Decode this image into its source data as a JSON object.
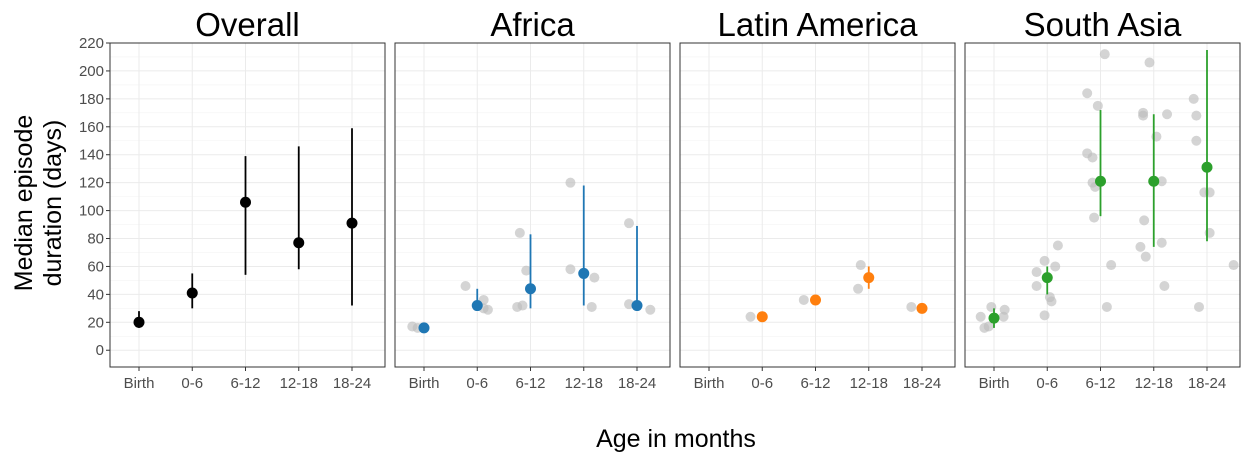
{
  "figure": {
    "ylabel_lines": [
      "Median episode",
      "duration (days)"
    ],
    "xlabel": "Age in months"
  },
  "colors": {
    "Overall": "#000000",
    "Africa": "#1f77b4",
    "Latin America": "#ff7f0e",
    "South Asia": "#2ca02c",
    "individual_points": "#bdbdbd",
    "grid_major": "#ebebeb",
    "panel_border": "#333333"
  },
  "chart_data": [
    {
      "type": "scatter",
      "title": "Overall",
      "categories": [
        "Birth",
        "0-6",
        "6-12",
        "12-18",
        "18-24"
      ],
      "ylim": [
        -12,
        220
      ],
      "yticks": [
        0,
        20,
        40,
        60,
        80,
        100,
        120,
        140,
        160,
        180,
        200,
        220
      ],
      "grid": true,
      "summary": [
        {
          "x": "Birth",
          "median": 20,
          "lower": 16,
          "upper": 28
        },
        {
          "x": "0-6",
          "median": 41,
          "lower": 30,
          "upper": 55
        },
        {
          "x": "6-12",
          "median": 106,
          "lower": 54,
          "upper": 139
        },
        {
          "x": "12-18",
          "median": 77,
          "lower": 58,
          "upper": 146
        },
        {
          "x": "18-24",
          "median": 91,
          "lower": 32,
          "upper": 159
        }
      ],
      "points": []
    },
    {
      "type": "scatter",
      "title": "Africa",
      "categories": [
        "Birth",
        "0-6",
        "6-12",
        "12-18",
        "18-24"
      ],
      "ylim": [
        -12,
        220
      ],
      "grid": true,
      "summary": [
        {
          "x": "Birth",
          "median": 16,
          "lower": 16,
          "upper": 16
        },
        {
          "x": "0-6",
          "median": 32,
          "lower": 29,
          "upper": 44
        },
        {
          "x": "6-12",
          "median": 44,
          "lower": 30,
          "upper": 83
        },
        {
          "x": "12-18",
          "median": 55,
          "lower": 32,
          "upper": 118
        },
        {
          "x": "18-24",
          "median": 32,
          "lower": 30,
          "upper": 89
        }
      ],
      "points": [
        {
          "x": "Birth",
          "offset": -0.22,
          "y": 17
        },
        {
          "x": "Birth",
          "offset": -0.12,
          "y": 16
        },
        {
          "x": "0-6",
          "offset": -0.22,
          "y": 46
        },
        {
          "x": "0-6",
          "offset": 0.12,
          "y": 36
        },
        {
          "x": "0-6",
          "offset": 0.12,
          "y": 30
        },
        {
          "x": "0-6",
          "offset": 0.2,
          "y": 29
        },
        {
          "x": "6-12",
          "offset": -0.25,
          "y": 31
        },
        {
          "x": "6-12",
          "offset": -0.15,
          "y": 32
        },
        {
          "x": "6-12",
          "offset": -0.2,
          "y": 84
        },
        {
          "x": "6-12",
          "offset": -0.08,
          "y": 57
        },
        {
          "x": "12-18",
          "offset": -0.25,
          "y": 120
        },
        {
          "x": "12-18",
          "offset": -0.25,
          "y": 58
        },
        {
          "x": "12-18",
          "offset": 0.2,
          "y": 52
        },
        {
          "x": "12-18",
          "offset": 0.15,
          "y": 31
        },
        {
          "x": "18-24",
          "offset": -0.15,
          "y": 91
        },
        {
          "x": "18-24",
          "offset": -0.15,
          "y": 33
        },
        {
          "x": "18-24",
          "offset": 0.25,
          "y": 29
        }
      ]
    },
    {
      "type": "scatter",
      "title": "Latin America",
      "categories": [
        "Birth",
        "0-6",
        "6-12",
        "12-18",
        "18-24"
      ],
      "ylim": [
        -12,
        220
      ],
      "grid": true,
      "summary": [
        {
          "x": "0-6",
          "median": 24,
          "lower": 24,
          "upper": 24
        },
        {
          "x": "6-12",
          "median": 36,
          "lower": 36,
          "upper": 36
        },
        {
          "x": "12-18",
          "median": 52,
          "lower": 44,
          "upper": 60
        },
        {
          "x": "18-24",
          "median": 30,
          "lower": 30,
          "upper": 30
        }
      ],
      "points": [
        {
          "x": "0-6",
          "offset": -0.22,
          "y": 24
        },
        {
          "x": "6-12",
          "offset": -0.22,
          "y": 36
        },
        {
          "x": "12-18",
          "offset": -0.2,
          "y": 44
        },
        {
          "x": "12-18",
          "offset": -0.15,
          "y": 61
        },
        {
          "x": "18-24",
          "offset": -0.2,
          "y": 31
        }
      ]
    },
    {
      "type": "scatter",
      "title": "South Asia",
      "categories": [
        "Birth",
        "0-6",
        "6-12",
        "12-18",
        "18-24"
      ],
      "ylim": [
        -12,
        220
      ],
      "grid": true,
      "summary": [
        {
          "x": "Birth",
          "median": 23,
          "lower": 16,
          "upper": 30
        },
        {
          "x": "0-6",
          "median": 52,
          "lower": 40,
          "upper": 60
        },
        {
          "x": "6-12",
          "median": 121,
          "lower": 96,
          "upper": 172
        },
        {
          "x": "12-18",
          "median": 121,
          "lower": 74,
          "upper": 169
        },
        {
          "x": "18-24",
          "median": 131,
          "lower": 78,
          "upper": 215
        }
      ],
      "points": [
        {
          "x": "Birth",
          "offset": -0.25,
          "y": 24
        },
        {
          "x": "Birth",
          "offset": -0.18,
          "y": 16
        },
        {
          "x": "Birth",
          "offset": -0.1,
          "y": 17
        },
        {
          "x": "Birth",
          "offset": -0.05,
          "y": 31
        },
        {
          "x": "Birth",
          "offset": 0.2,
          "y": 29
        },
        {
          "x": "Birth",
          "offset": 0.18,
          "y": 24
        },
        {
          "x": "0-6",
          "offset": -0.2,
          "y": 46
        },
        {
          "x": "0-6",
          "offset": -0.2,
          "y": 56
        },
        {
          "x": "0-6",
          "offset": -0.05,
          "y": 64
        },
        {
          "x": "0-6",
          "offset": -0.05,
          "y": 25
        },
        {
          "x": "0-6",
          "offset": 0.05,
          "y": 38
        },
        {
          "x": "0-6",
          "offset": 0.08,
          "y": 35
        },
        {
          "x": "0-6",
          "offset": 0.15,
          "y": 60
        },
        {
          "x": "0-6",
          "offset": 0.2,
          "y": 75
        },
        {
          "x": "6-12",
          "offset": -0.25,
          "y": 184
        },
        {
          "x": "6-12",
          "offset": -0.25,
          "y": 141
        },
        {
          "x": "6-12",
          "offset": -0.15,
          "y": 138
        },
        {
          "x": "6-12",
          "offset": -0.15,
          "y": 120
        },
        {
          "x": "6-12",
          "offset": -0.1,
          "y": 117
        },
        {
          "x": "6-12",
          "offset": -0.12,
          "y": 95
        },
        {
          "x": "6-12",
          "offset": -0.05,
          "y": 175
        },
        {
          "x": "6-12",
          "offset": 0.08,
          "y": 212
        },
        {
          "x": "6-12",
          "offset": 0.12,
          "y": 31
        },
        {
          "x": "6-12",
          "offset": 0.2,
          "y": 61
        },
        {
          "x": "12-18",
          "offset": -0.2,
          "y": 170
        },
        {
          "x": "12-18",
          "offset": -0.2,
          "y": 168
        },
        {
          "x": "12-18",
          "offset": -0.18,
          "y": 93
        },
        {
          "x": "12-18",
          "offset": -0.25,
          "y": 74
        },
        {
          "x": "12-18",
          "offset": -0.15,
          "y": 67
        },
        {
          "x": "12-18",
          "offset": -0.08,
          "y": 206
        },
        {
          "x": "12-18",
          "offset": 0.05,
          "y": 153
        },
        {
          "x": "12-18",
          "offset": 0.15,
          "y": 121
        },
        {
          "x": "12-18",
          "offset": 0.15,
          "y": 77
        },
        {
          "x": "12-18",
          "offset": 0.2,
          "y": 46
        },
        {
          "x": "12-18",
          "offset": 0.25,
          "y": 169
        },
        {
          "x": "18-24",
          "offset": -0.25,
          "y": 180
        },
        {
          "x": "18-24",
          "offset": -0.2,
          "y": 168
        },
        {
          "x": "18-24",
          "offset": -0.2,
          "y": 150
        },
        {
          "x": "18-24",
          "offset": -0.15,
          "y": 31
        },
        {
          "x": "18-24",
          "offset": -0.05,
          "y": 113
        },
        {
          "x": "18-24",
          "offset": 0.05,
          "y": 113
        },
        {
          "x": "18-24",
          "offset": 0.05,
          "y": 84
        },
        {
          "x": "18-24",
          "offset": 0.5,
          "y": 61
        }
      ]
    }
  ]
}
